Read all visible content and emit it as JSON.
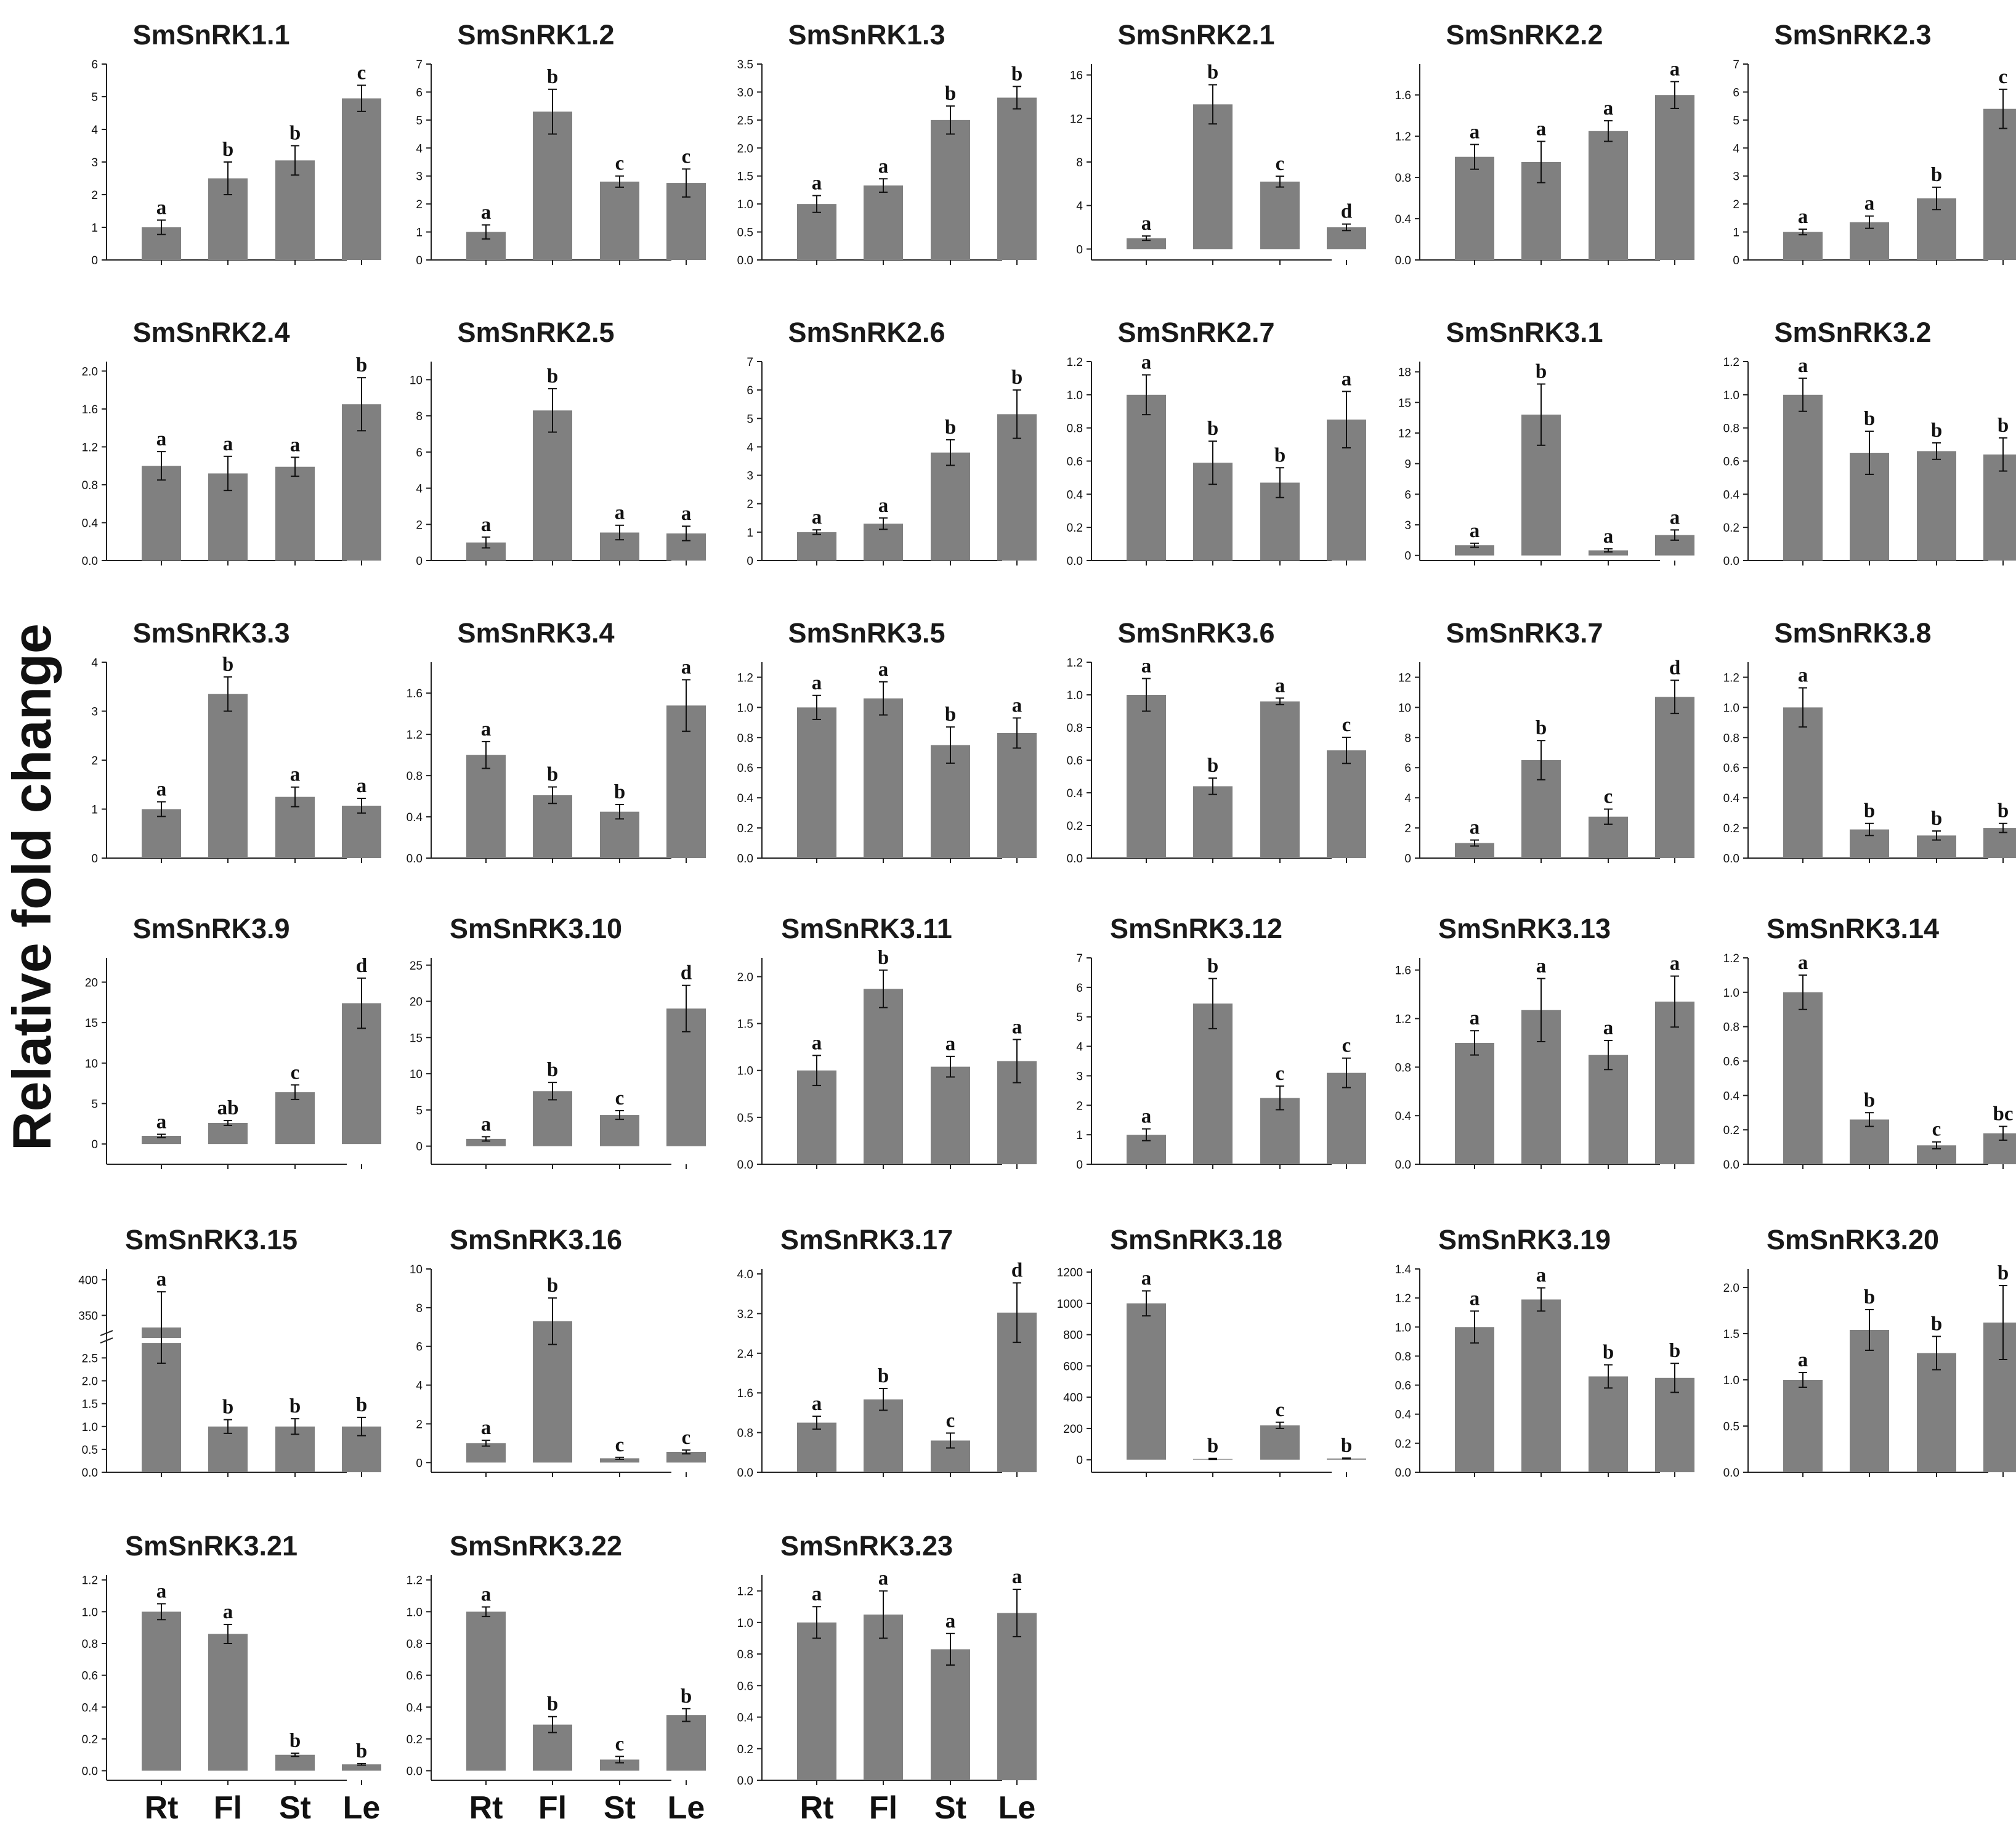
{
  "figure": {
    "y_title": "Relative fold change",
    "x_categories": [
      "Rt",
      "Fl",
      "St",
      "Le"
    ]
  },
  "colors": {
    "bar": "#808080",
    "axis": "#222222",
    "text": "#111111"
  },
  "chart_data": [
    {
      "type": "bar",
      "title": "SmSnRK1.1",
      "categories": [
        "Rt",
        "Fl",
        "St",
        "Le"
      ],
      "values": [
        1,
        2.5,
        3.05,
        4.95
      ],
      "errors": [
        0.22,
        0.5,
        0.45,
        0.4
      ],
      "letters": [
        "a",
        "b",
        "b",
        "c"
      ],
      "ylim": [
        0,
        6
      ],
      "yticks": [
        "0",
        "1",
        "2",
        "3",
        "4",
        "5",
        "6"
      ]
    },
    {
      "type": "bar",
      "title": "SmSnRK1.2",
      "categories": [
        "Rt",
        "Fl",
        "St",
        "Le"
      ],
      "values": [
        1,
        5.3,
        2.8,
        2.75
      ],
      "errors": [
        0.25,
        0.8,
        0.2,
        0.5
      ],
      "letters": [
        "a",
        "b",
        "c",
        "c"
      ],
      "ylim": [
        0,
        7
      ],
      "yticks": [
        "0",
        "1",
        "2",
        "3",
        "4",
        "5",
        "6",
        "7"
      ]
    },
    {
      "type": "bar",
      "title": "SmSnRK1.3",
      "categories": [
        "Rt",
        "Fl",
        "St",
        "Le"
      ],
      "values": [
        1,
        1.33,
        2.5,
        2.9
      ],
      "errors": [
        0.15,
        0.12,
        0.25,
        0.2
      ],
      "letters": [
        "a",
        "a",
        "b",
        "b"
      ],
      "ylim": [
        0,
        3.5
      ],
      "yticks": [
        "0.0",
        "0.5",
        "1.0",
        "1.5",
        "2.0",
        "2.5",
        "3.0",
        "3.5"
      ]
    },
    {
      "type": "bar",
      "title": "SmSnRK2.1",
      "categories": [
        "Rt",
        "Fl",
        "St",
        "Le"
      ],
      "values": [
        1,
        13.3,
        6.2,
        2
      ],
      "errors": [
        0.2,
        1.8,
        0.5,
        0.3
      ],
      "letters": [
        "a",
        "b",
        "c",
        "d"
      ],
      "ylim": [
        -1,
        17
      ],
      "yticks": [
        "0",
        "4",
        "8",
        "12",
        "16"
      ]
    },
    {
      "type": "bar",
      "title": "SmSnRK2.2",
      "categories": [
        "Rt",
        "Fl",
        "St",
        "Le"
      ],
      "values": [
        1,
        0.95,
        1.25,
        1.6
      ],
      "errors": [
        0.12,
        0.2,
        0.1,
        0.13
      ],
      "letters": [
        "a",
        "a",
        "a",
        "a"
      ],
      "ylim": [
        0,
        1.9
      ],
      "yticks": [
        "0.0",
        "0.4",
        "0.8",
        "1.2",
        "1.6"
      ]
    },
    {
      "type": "bar",
      "title": "SmSnRK2.3",
      "categories": [
        "Rt",
        "Fl",
        "St",
        "Le"
      ],
      "values": [
        1,
        1.35,
        2.2,
        5.4
      ],
      "errors": [
        0.1,
        0.22,
        0.4,
        0.7
      ],
      "letters": [
        "a",
        "a",
        "b",
        "c"
      ],
      "ylim": [
        0,
        7
      ],
      "yticks": [
        "0",
        "1",
        "2",
        "3",
        "4",
        "5",
        "6",
        "7"
      ]
    },
    {
      "type": "bar",
      "title": "SmSnRK2.4",
      "categories": [
        "Rt",
        "Fl",
        "St",
        "Le"
      ],
      "values": [
        1,
        0.92,
        0.99,
        1.65
      ],
      "errors": [
        0.15,
        0.18,
        0.1,
        0.28
      ],
      "letters": [
        "a",
        "a",
        "a",
        "b"
      ],
      "ylim": [
        0,
        2.1
      ],
      "yticks": [
        "0.0",
        "0.4",
        "0.8",
        "1.2",
        "1.6",
        "2.0"
      ]
    },
    {
      "type": "bar",
      "title": "SmSnRK2.5",
      "categories": [
        "Rt",
        "Fl",
        "St",
        "Le"
      ],
      "values": [
        1,
        8.3,
        1.55,
        1.5
      ],
      "errors": [
        0.3,
        1.2,
        0.4,
        0.4
      ],
      "letters": [
        "a",
        "b",
        "a",
        "a"
      ],
      "ylim": [
        0,
        11
      ],
      "yticks": [
        "0",
        "2",
        "4",
        "6",
        "8",
        "10"
      ]
    },
    {
      "type": "bar",
      "title": "SmSnRK2.6",
      "categories": [
        "Rt",
        "Fl",
        "St",
        "Le"
      ],
      "values": [
        1,
        1.3,
        3.8,
        5.15
      ],
      "errors": [
        0.08,
        0.2,
        0.45,
        0.85
      ],
      "letters": [
        "a",
        "a",
        "b",
        "b"
      ],
      "ylim": [
        0,
        7
      ],
      "yticks": [
        "0",
        "1",
        "2",
        "3",
        "4",
        "5",
        "6",
        "7"
      ]
    },
    {
      "type": "bar",
      "title": "SmSnRK2.7",
      "categories": [
        "Rt",
        "Fl",
        "St",
        "Le"
      ],
      "values": [
        1,
        0.59,
        0.47,
        0.85
      ],
      "errors": [
        0.12,
        0.13,
        0.09,
        0.17
      ],
      "letters": [
        "a",
        "b",
        "b",
        "a"
      ],
      "ylim": [
        0,
        1.2
      ],
      "yticks": [
        "0.0",
        "0.2",
        "0.4",
        "0.6",
        "0.8",
        "1.0",
        "1.2"
      ]
    },
    {
      "type": "bar",
      "title": "SmSnRK3.1",
      "categories": [
        "Rt",
        "Fl",
        "St",
        "Le"
      ],
      "values": [
        1,
        13.8,
        0.5,
        2
      ],
      "errors": [
        0.2,
        3,
        0.15,
        0.5
      ],
      "letters": [
        "a",
        "b",
        "a",
        "a"
      ],
      "ylim": [
        -0.5,
        19
      ],
      "yticks": [
        "0",
        "3",
        "6",
        "9",
        "12",
        "15",
        "18"
      ]
    },
    {
      "type": "bar",
      "title": "SmSnRK3.2",
      "categories": [
        "Rt",
        "Fl",
        "St",
        "Le"
      ],
      "values": [
        1,
        0.65,
        0.66,
        0.64
      ],
      "errors": [
        0.1,
        0.13,
        0.05,
        0.1
      ],
      "letters": [
        "a",
        "b",
        "b",
        "b"
      ],
      "ylim": [
        0,
        1.2
      ],
      "yticks": [
        "0.0",
        "0.2",
        "0.4",
        "0.6",
        "0.8",
        "1.0",
        "1.2"
      ]
    },
    {
      "type": "bar",
      "title": "SmSnRK3.3",
      "categories": [
        "Rt",
        "Fl",
        "St",
        "Le"
      ],
      "values": [
        1,
        3.35,
        1.25,
        1.07
      ],
      "errors": [
        0.15,
        0.35,
        0.2,
        0.15
      ],
      "letters": [
        "a",
        "b",
        "a",
        "a"
      ],
      "ylim": [
        0,
        4
      ],
      "yticks": [
        "0",
        "1",
        "2",
        "3",
        "4"
      ]
    },
    {
      "type": "bar",
      "title": "SmSnRK3.4",
      "categories": [
        "Rt",
        "Fl",
        "St",
        "Le"
      ],
      "values": [
        1,
        0.61,
        0.45,
        1.48
      ],
      "errors": [
        0.13,
        0.08,
        0.07,
        0.25
      ],
      "letters": [
        "a",
        "b",
        "b",
        "a"
      ],
      "ylim": [
        0,
        1.9
      ],
      "yticks": [
        "0.0",
        "0.4",
        "0.8",
        "1.2",
        "1.6"
      ]
    },
    {
      "type": "bar",
      "title": "SmSnRK3.5",
      "categories": [
        "Rt",
        "Fl",
        "St",
        "Le"
      ],
      "values": [
        1,
        1.06,
        0.75,
        0.83
      ],
      "errors": [
        0.08,
        0.11,
        0.12,
        0.1
      ],
      "letters": [
        "a",
        "a",
        "b",
        "a"
      ],
      "ylim": [
        0,
        1.3
      ],
      "yticks": [
        "0.0",
        "0.2",
        "0.4",
        "0.6",
        "0.8",
        "1.0",
        "1.2"
      ]
    },
    {
      "type": "bar",
      "title": "SmSnRK3.6",
      "categories": [
        "Rt",
        "Fl",
        "St",
        "Le"
      ],
      "values": [
        1,
        0.44,
        0.96,
        0.66
      ],
      "errors": [
        0.1,
        0.05,
        0.02,
        0.08
      ],
      "letters": [
        "a",
        "b",
        "a",
        "c"
      ],
      "ylim": [
        0,
        1.2
      ],
      "yticks": [
        "0.0",
        "0.2",
        "0.4",
        "0.6",
        "0.8",
        "1.0",
        "1.2"
      ]
    },
    {
      "type": "bar",
      "title": "SmSnRK3.7",
      "categories": [
        "Rt",
        "Fl",
        "St",
        "Le"
      ],
      "values": [
        1,
        6.5,
        2.75,
        10.7
      ],
      "errors": [
        0.2,
        1.3,
        0.5,
        1.1
      ],
      "letters": [
        "a",
        "b",
        "c",
        "d"
      ],
      "ylim": [
        0,
        13
      ],
      "yticks": [
        "0",
        "2",
        "4",
        "6",
        "8",
        "10",
        "12"
      ]
    },
    {
      "type": "bar",
      "title": "SmSnRK3.8",
      "categories": [
        "Rt",
        "Fl",
        "St",
        "Le"
      ],
      "values": [
        1,
        0.19,
        0.15,
        0.2
      ],
      "errors": [
        0.13,
        0.04,
        0.03,
        0.03
      ],
      "letters": [
        "a",
        "b",
        "b",
        "b"
      ],
      "ylim": [
        0,
        1.3
      ],
      "yticks": [
        "0.0",
        "0.2",
        "0.4",
        "0.6",
        "0.8",
        "1.0",
        "1.2"
      ]
    },
    {
      "type": "bar",
      "title": "SmSnRK3.9",
      "categories": [
        "Rt",
        "Fl",
        "St",
        "Le"
      ],
      "values": [
        1,
        2.6,
        6.4,
        17.4
      ],
      "errors": [
        0.2,
        0.3,
        0.9,
        3.1
      ],
      "letters": [
        "a",
        "ab",
        "c",
        "d"
      ],
      "ylim": [
        -2.5,
        23
      ],
      "yticks": [
        "0",
        "5",
        "10",
        "15",
        "20"
      ]
    },
    {
      "type": "bar",
      "title": "SmSnRK3.10",
      "categories": [
        "Rt",
        "Fl",
        "St",
        "Le"
      ],
      "values": [
        1,
        7.6,
        4.3,
        19
      ],
      "errors": [
        0.3,
        1.2,
        0.6,
        3.2
      ],
      "letters": [
        "a",
        "b",
        "c",
        "d"
      ],
      "ylim": [
        -2.5,
        26
      ],
      "yticks": [
        "0",
        "5",
        "10",
        "15",
        "20",
        "25"
      ]
    },
    {
      "type": "bar",
      "title": "SmSnRK3.11",
      "categories": [
        "Rt",
        "Fl",
        "St",
        "Le"
      ],
      "values": [
        1,
        1.87,
        1.04,
        1.1
      ],
      "errors": [
        0.16,
        0.2,
        0.11,
        0.23
      ],
      "letters": [
        "a",
        "b",
        "a",
        "a"
      ],
      "ylim": [
        0,
        2.2
      ],
      "yticks": [
        "0.0",
        "0.5",
        "1.0",
        "1.5",
        "2.0"
      ]
    },
    {
      "type": "bar",
      "title": "SmSnRK3.12",
      "categories": [
        "Rt",
        "Fl",
        "St",
        "Le"
      ],
      "values": [
        1,
        5.45,
        2.25,
        3.1
      ],
      "errors": [
        0.2,
        0.85,
        0.4,
        0.5
      ],
      "letters": [
        "a",
        "b",
        "c",
        "c"
      ],
      "ylim": [
        0,
        7
      ],
      "yticks": [
        "0",
        "1",
        "2",
        "3",
        "4",
        "5",
        "6",
        "7"
      ]
    },
    {
      "type": "bar",
      "title": "SmSnRK3.13",
      "categories": [
        "Rt",
        "Fl",
        "St",
        "Le"
      ],
      "values": [
        1,
        1.27,
        0.9,
        1.34
      ],
      "errors": [
        0.1,
        0.26,
        0.12,
        0.21
      ],
      "letters": [
        "a",
        "a",
        "a",
        "a"
      ],
      "ylim": [
        0,
        1.7
      ],
      "yticks": [
        "0.0",
        "0.4",
        "0.8",
        "1.2",
        "1.6"
      ]
    },
    {
      "type": "bar",
      "title": "SmSnRK3.14",
      "categories": [
        "Rt",
        "Fl",
        "St",
        "Le"
      ],
      "values": [
        1,
        0.26,
        0.11,
        0.18
      ],
      "errors": [
        0.1,
        0.04,
        0.02,
        0.04
      ],
      "letters": [
        "a",
        "b",
        "c",
        "bc"
      ],
      "ylim": [
        0,
        1.2
      ],
      "yticks": [
        "0.0",
        "0.2",
        "0.4",
        "0.6",
        "0.8",
        "1.0",
        "1.2"
      ]
    },
    {
      "type": "bar",
      "title": "SmSnRK3.15",
      "categories": [
        "Rt",
        "Fl",
        "St",
        "Le"
      ],
      "values": [
        333,
        1,
        1,
        1
      ],
      "errors": [
        50,
        0.15,
        0.17,
        0.2
      ],
      "letters": [
        "a",
        "b",
        "b",
        "b"
      ],
      "axis_break": [
        2.8,
        320
      ],
      "ylim": [
        0,
        415
      ],
      "yticks": [
        "0.0",
        "0.5",
        "1.0",
        "1.5",
        "2.0",
        "2.5",
        "350",
        "400"
      ]
    },
    {
      "type": "bar",
      "title": "SmSnRK3.16",
      "categories": [
        "Rt",
        "Fl",
        "St",
        "Le"
      ],
      "values": [
        1,
        7.3,
        0.22,
        0.55
      ],
      "errors": [
        0.15,
        1.2,
        0.05,
        0.1
      ],
      "letters": [
        "a",
        "b",
        "c",
        "c"
      ],
      "ylim": [
        -0.5,
        10
      ],
      "yticks": [
        "0",
        "2",
        "4",
        "6",
        "8",
        "10"
      ]
    },
    {
      "type": "bar",
      "title": "SmSnRK3.17",
      "categories": [
        "Rt",
        "Fl",
        "St",
        "Le"
      ],
      "values": [
        1,
        1.47,
        0.64,
        3.22
      ],
      "errors": [
        0.13,
        0.22,
        0.15,
        0.6
      ],
      "letters": [
        "a",
        "b",
        "c",
        "d"
      ],
      "ylim": [
        0,
        4.1
      ],
      "yticks": [
        "0.0",
        "0.8",
        "1.6",
        "2.4",
        "3.2",
        "4.0"
      ]
    },
    {
      "type": "bar",
      "title": "SmSnRK3.18",
      "categories": [
        "Rt",
        "Fl",
        "St",
        "Le"
      ],
      "values": [
        1000,
        5,
        220,
        8
      ],
      "errors": [
        80,
        3,
        20,
        3
      ],
      "letters": [
        "a",
        "b",
        "c",
        "b"
      ],
      "ylim": [
        -80,
        1220
      ],
      "yticks": [
        "0",
        "200",
        "400",
        "600",
        "800",
        "1000",
        "1200"
      ]
    },
    {
      "type": "bar",
      "title": "SmSnRK3.19",
      "categories": [
        "Rt",
        "Fl",
        "St",
        "Le"
      ],
      "values": [
        1,
        1.19,
        0.66,
        0.65
      ],
      "errors": [
        0.11,
        0.08,
        0.08,
        0.1
      ],
      "letters": [
        "a",
        "a",
        "b",
        "b"
      ],
      "ylim": [
        0,
        1.4
      ],
      "yticks": [
        "0.0",
        "0.2",
        "0.4",
        "0.6",
        "0.8",
        "1.0",
        "1.2",
        "1.4"
      ]
    },
    {
      "type": "bar",
      "title": "SmSnRK3.20",
      "categories": [
        "Rt",
        "Fl",
        "St",
        "Le"
      ],
      "values": [
        1,
        1.54,
        1.29,
        1.62
      ],
      "errors": [
        0.08,
        0.22,
        0.18,
        0.4
      ],
      "letters": [
        "a",
        "b",
        "b",
        "b"
      ],
      "ylim": [
        0,
        2.2
      ],
      "yticks": [
        "0.0",
        "0.5",
        "1.0",
        "1.5",
        "2.0"
      ]
    },
    {
      "type": "bar",
      "title": "SmSnRK3.21",
      "categories": [
        "Rt",
        "Fl",
        "St",
        "Le"
      ],
      "values": [
        1,
        0.86,
        0.1,
        0.04
      ],
      "errors": [
        0.05,
        0.06,
        0.01,
        0.005
      ],
      "letters": [
        "a",
        "a",
        "b",
        "b"
      ],
      "ylim": [
        -0.06,
        1.23
      ],
      "yticks": [
        "0.0",
        "0.2",
        "0.4",
        "0.6",
        "0.8",
        "1.0",
        "1.2"
      ]
    },
    {
      "type": "bar",
      "title": "SmSnRK3.22",
      "categories": [
        "Rt",
        "Fl",
        "St",
        "Le"
      ],
      "values": [
        1,
        0.29,
        0.07,
        0.35
      ],
      "errors": [
        0.03,
        0.05,
        0.02,
        0.04
      ],
      "letters": [
        "a",
        "b",
        "c",
        "b"
      ],
      "ylim": [
        -0.06,
        1.23
      ],
      "yticks": [
        "0.0",
        "0.2",
        "0.4",
        "0.6",
        "0.8",
        "1.0",
        "1.2"
      ]
    },
    {
      "type": "bar",
      "title": "SmSnRK3.23",
      "categories": [
        "Rt",
        "Fl",
        "St",
        "Le"
      ],
      "values": [
        1,
        1.05,
        0.83,
        1.06
      ],
      "errors": [
        0.1,
        0.15,
        0.1,
        0.15
      ],
      "letters": [
        "a",
        "a",
        "a",
        "a"
      ],
      "ylim": [
        0,
        1.3
      ],
      "yticks": [
        "0.0",
        "0.2",
        "0.4",
        "0.6",
        "0.8",
        "1.0",
        "1.2"
      ]
    }
  ]
}
